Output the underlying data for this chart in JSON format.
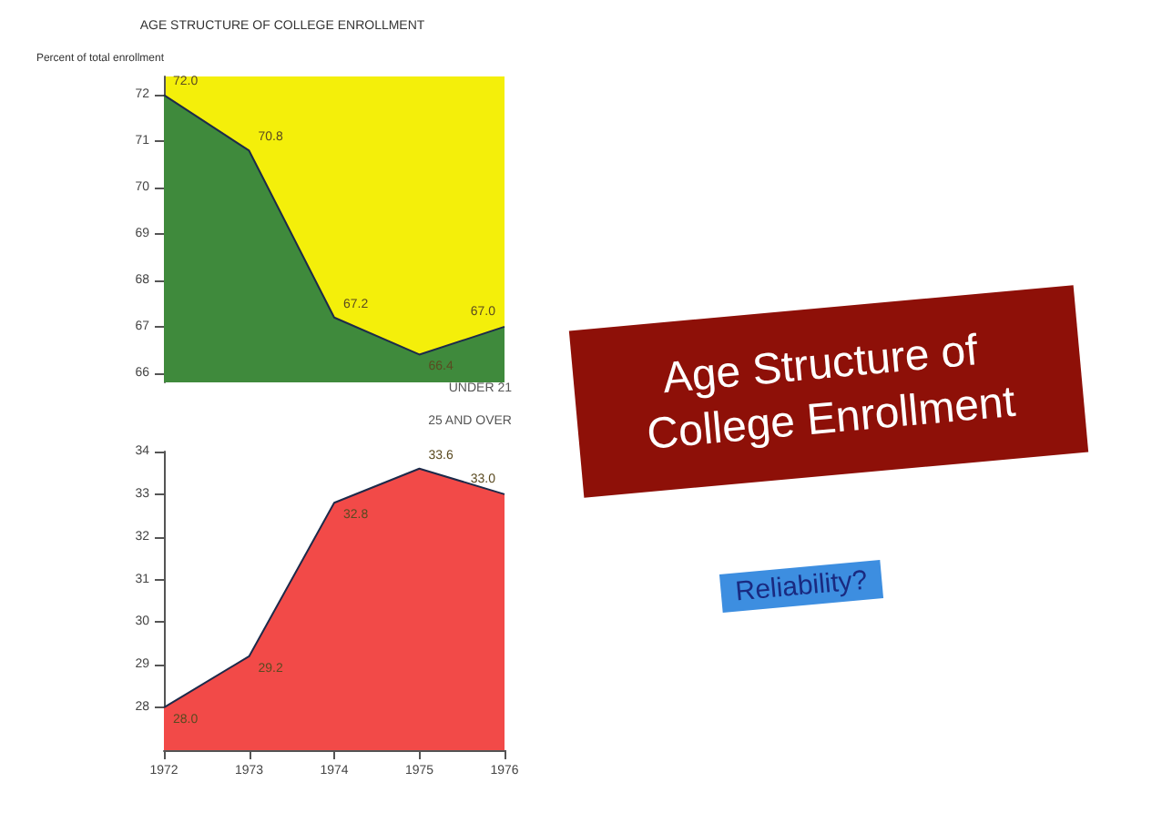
{
  "chart_data": [
    {
      "type": "area",
      "title": "AGE STRUCTURE OF COLLEGE ENROLLMENT",
      "ylabel": "Percent of total enrollment",
      "x": [
        1972,
        1973,
        1974,
        1975,
        1976
      ],
      "xlim": [
        1972,
        1976
      ],
      "xticks": [
        1972,
        1973,
        1974,
        1975,
        1976
      ],
      "ylim": [
        65.8,
        72.4
      ],
      "yticks": [
        66,
        67,
        68,
        69,
        70,
        71,
        72
      ],
      "tick_labels": "y",
      "grid": false,
      "legend": false,
      "series": [
        {
          "name": "UNDER 21",
          "color": "#3f8a3c",
          "values": [
            72.0,
            70.8,
            67.2,
            66.4,
            67.0
          ],
          "value_labels": [
            "72.0",
            "70.8",
            "67.2",
            "66.4",
            "67.0"
          ]
        }
      ]
    },
    {
      "type": "area",
      "x": [
        1972,
        1973,
        1974,
        1975,
        1976
      ],
      "xlim": [
        1972,
        1976
      ],
      "xticks": [
        1972,
        1973,
        1974,
        1975,
        1976
      ],
      "ylim": [
        27,
        34
      ],
      "yticks": [
        28,
        29,
        30,
        31,
        32,
        33,
        34
      ],
      "grid": false,
      "legend": false,
      "series": [
        {
          "name": "25 AND OVER",
          "color": "#f24a48",
          "values": [
            28.0,
            29.2,
            32.8,
            33.6,
            33.0
          ],
          "value_labels": [
            "28.0",
            "29.2",
            "32.8",
            "33.6",
            "33.0"
          ]
        }
      ]
    },
    {
      "type": "other",
      "annotations": [
        "Age Structure of College Enrollment",
        "Reliability?"
      ]
    }
  ]
}
